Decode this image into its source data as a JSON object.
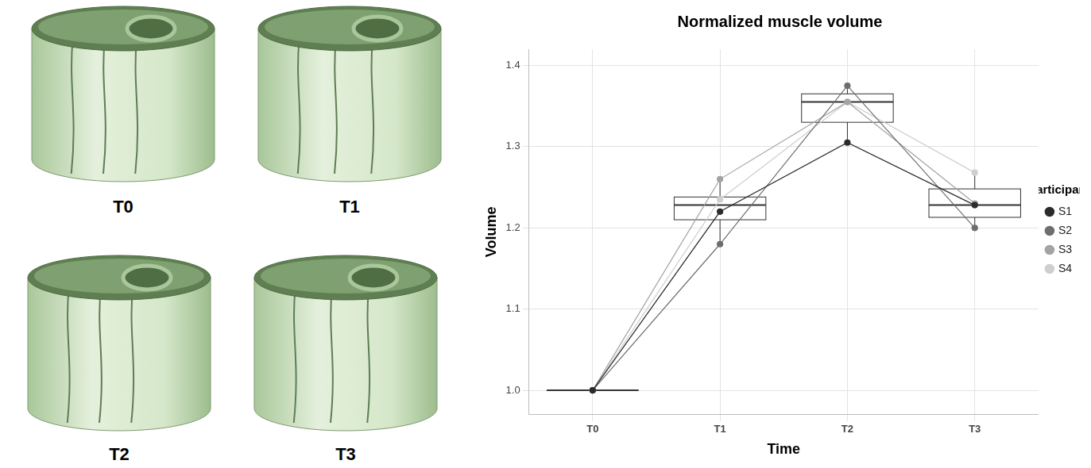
{
  "chart_data": {
    "type": "line",
    "title": "Normalized muscle volume",
    "x_label": "Time",
    "y_label": "Volume",
    "categories": [
      "T0",
      "T1",
      "T2",
      "T3"
    ],
    "series": [
      {
        "name": "S1",
        "color": "#2b2b2b",
        "values": [
          1.0,
          1.22,
          1.305,
          1.228
        ]
      },
      {
        "name": "S2",
        "color": "#6e6e6e",
        "values": [
          1.0,
          1.18,
          1.375,
          1.2
        ]
      },
      {
        "name": "S3",
        "color": "#a3a3a3",
        "values": [
          1.0,
          1.26,
          1.355,
          1.23
        ]
      },
      {
        "name": "S4",
        "color": "#cfcfcf",
        "values": [
          1.0,
          1.235,
          1.355,
          1.268
        ]
      }
    ],
    "boxes": [
      {
        "category": "T0",
        "whisker_low": 1.0,
        "q1": 1.0,
        "median": 1.0,
        "q3": 1.0,
        "whisker_high": 1.0
      },
      {
        "category": "T1",
        "whisker_low": 1.18,
        "q1": 1.21,
        "median": 1.228,
        "q3": 1.238,
        "whisker_high": 1.26
      },
      {
        "category": "T2",
        "whisker_low": 1.305,
        "q1": 1.33,
        "median": 1.355,
        "q3": 1.365,
        "whisker_high": 1.375
      },
      {
        "category": "T3",
        "whisker_low": 1.2,
        "q1": 1.213,
        "median": 1.228,
        "q3": 1.248,
        "whisker_high": 1.268
      }
    ],
    "ylim": [
      0.97,
      1.42
    ],
    "yticks": [
      {
        "value": 1.0,
        "label": "1.0"
      },
      {
        "value": 1.1,
        "label": "1.1"
      },
      {
        "value": 1.2,
        "label": "1.2"
      },
      {
        "value": 1.3,
        "label": "1.3"
      },
      {
        "value": 1.4,
        "label": "1.4"
      }
    ],
    "grid": true,
    "legend": "right",
    "legend_title": "Participant",
    "marker": "circle",
    "line_style": "solid"
  },
  "renders": {
    "labels": [
      "T0",
      "T1",
      "T2",
      "T3"
    ]
  }
}
